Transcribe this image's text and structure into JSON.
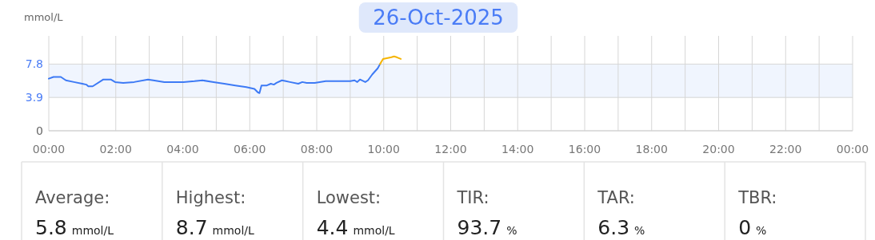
{
  "chart_data": [
    {
      "type": "line",
      "title": "26-Oct-2025",
      "ylabel": "mmol/L",
      "xlim": [
        0,
        24
      ],
      "ylim": [
        0,
        11.1
      ],
      "xticks": [
        {
          "value": 0,
          "label": "00:00"
        },
        {
          "value": 1,
          "label": null
        },
        {
          "value": 2,
          "label": "02:00"
        },
        {
          "value": 3,
          "label": null
        },
        {
          "value": 4,
          "label": "04:00"
        },
        {
          "value": 5,
          "label": null
        },
        {
          "value": 6,
          "label": "06:00"
        },
        {
          "value": 7,
          "label": null
        },
        {
          "value": 8,
          "label": "08:00"
        },
        {
          "value": 9,
          "label": null
        },
        {
          "value": 10,
          "label": "10:00"
        },
        {
          "value": 11,
          "label": null
        },
        {
          "value": 12,
          "label": "12:00"
        },
        {
          "value": 13,
          "label": null
        },
        {
          "value": 14,
          "label": "14:00"
        },
        {
          "value": 15,
          "label": null
        },
        {
          "value": 16,
          "label": "16:00"
        },
        {
          "value": 17,
          "label": null
        },
        {
          "value": 18,
          "label": "18:00"
        },
        {
          "value": 19,
          "label": null
        },
        {
          "value": 20,
          "label": "20:00"
        },
        {
          "value": 21,
          "label": null
        },
        {
          "value": 22,
          "label": "22:00"
        },
        {
          "value": 23,
          "label": null
        },
        {
          "value": 24,
          "label": "00:00"
        }
      ],
      "yticks": [
        0,
        3.9,
        7.8
      ],
      "grid": true,
      "marker": "none",
      "line_style": "solid",
      "bands": [
        {
          "axis": "y",
          "from": 3.9,
          "to": 7.8,
          "color": "#f0f5fe"
        }
      ],
      "series": [
        {
          "color": "#3d7af5",
          "x": [
            0,
            0.14,
            0.36,
            0.51,
            0.75,
            1.0,
            1.12,
            1.18,
            1.31,
            1.63,
            1.85,
            1.98,
            2.22,
            2.55,
            2.96,
            3.12,
            3.45,
            4.02,
            4.35,
            4.59,
            4.92,
            5.24,
            5.57,
            5.9,
            6.14,
            6.24,
            6.29,
            6.35,
            6.51,
            6.63,
            6.72,
            6.8,
            6.96,
            7.08,
            7.2,
            7.45,
            7.57,
            7.7,
            7.94,
            8.27,
            9.0,
            9.13,
            9.21,
            9.29,
            9.45,
            9.53,
            9.66,
            9.82,
            9.89
          ],
          "values": [
            6.1,
            6.3,
            6.3,
            5.9,
            5.7,
            5.5,
            5.4,
            5.2,
            5.2,
            6.0,
            6.0,
            5.7,
            5.6,
            5.7,
            6.0,
            5.9,
            5.7,
            5.7,
            5.8,
            5.9,
            5.7,
            5.5,
            5.3,
            5.1,
            4.9,
            4.5,
            4.4,
            5.3,
            5.3,
            5.5,
            5.4,
            5.6,
            5.9,
            5.8,
            5.7,
            5.5,
            5.7,
            5.6,
            5.6,
            5.8,
            5.8,
            5.9,
            5.7,
            6.0,
            5.7,
            5.9,
            6.6,
            7.3,
            7.8
          ]
        },
        {
          "color": "#f5b400",
          "x": [
            9.89,
            9.98,
            10.23,
            10.31,
            10.39,
            10.51
          ],
          "values": [
            7.8,
            8.4,
            8.6,
            8.7,
            8.6,
            8.4
          ]
        }
      ]
    },
    {
      "type": "other",
      "values": [
        5.8,
        8.7,
        4.4,
        93.7,
        6.3,
        0
      ],
      "data_labels": true,
      "annotations": [
        "Average:",
        "mmol/L",
        "Highest:",
        "mmol/L",
        "Lowest:",
        "mmol/L",
        "TIR:",
        "%",
        "TAR:",
        "%",
        "TBR:",
        "%"
      ]
    }
  ]
}
